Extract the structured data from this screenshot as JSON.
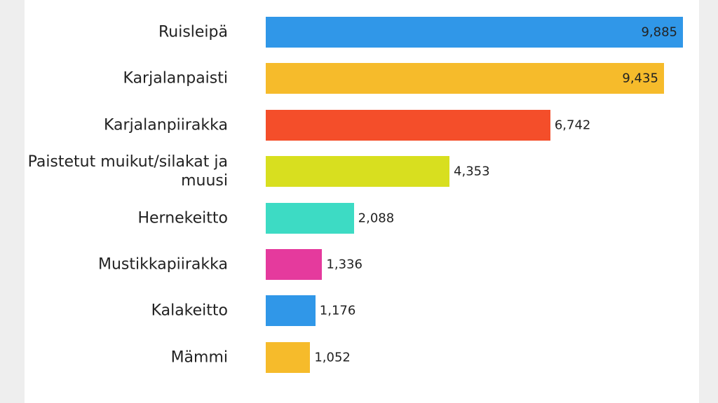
{
  "chart_data": {
    "type": "bar",
    "orientation": "horizontal",
    "categories": [
      "Ruisleipä",
      "Karjalanpaisti",
      "Karjalanpiirakka",
      "Paistetut muikut/silakat ja muusi",
      "Hernekeitto",
      "Mustikkapiirakka",
      "Kalakeitto",
      "Mämmi"
    ],
    "values": [
      9885,
      9435,
      6742,
      4353,
      2088,
      1336,
      1176,
      1052
    ],
    "value_labels": [
      "9,885",
      "9,435",
      "6,742",
      "4,353",
      "2,088",
      "1,336",
      "1,176",
      "1,052"
    ],
    "colors": [
      "#3097e8",
      "#f6bb2b",
      "#f44e2a",
      "#d8df1f",
      "#3ddbc4",
      "#e53a9d",
      "#3097e8",
      "#f6bb2b"
    ]
  }
}
